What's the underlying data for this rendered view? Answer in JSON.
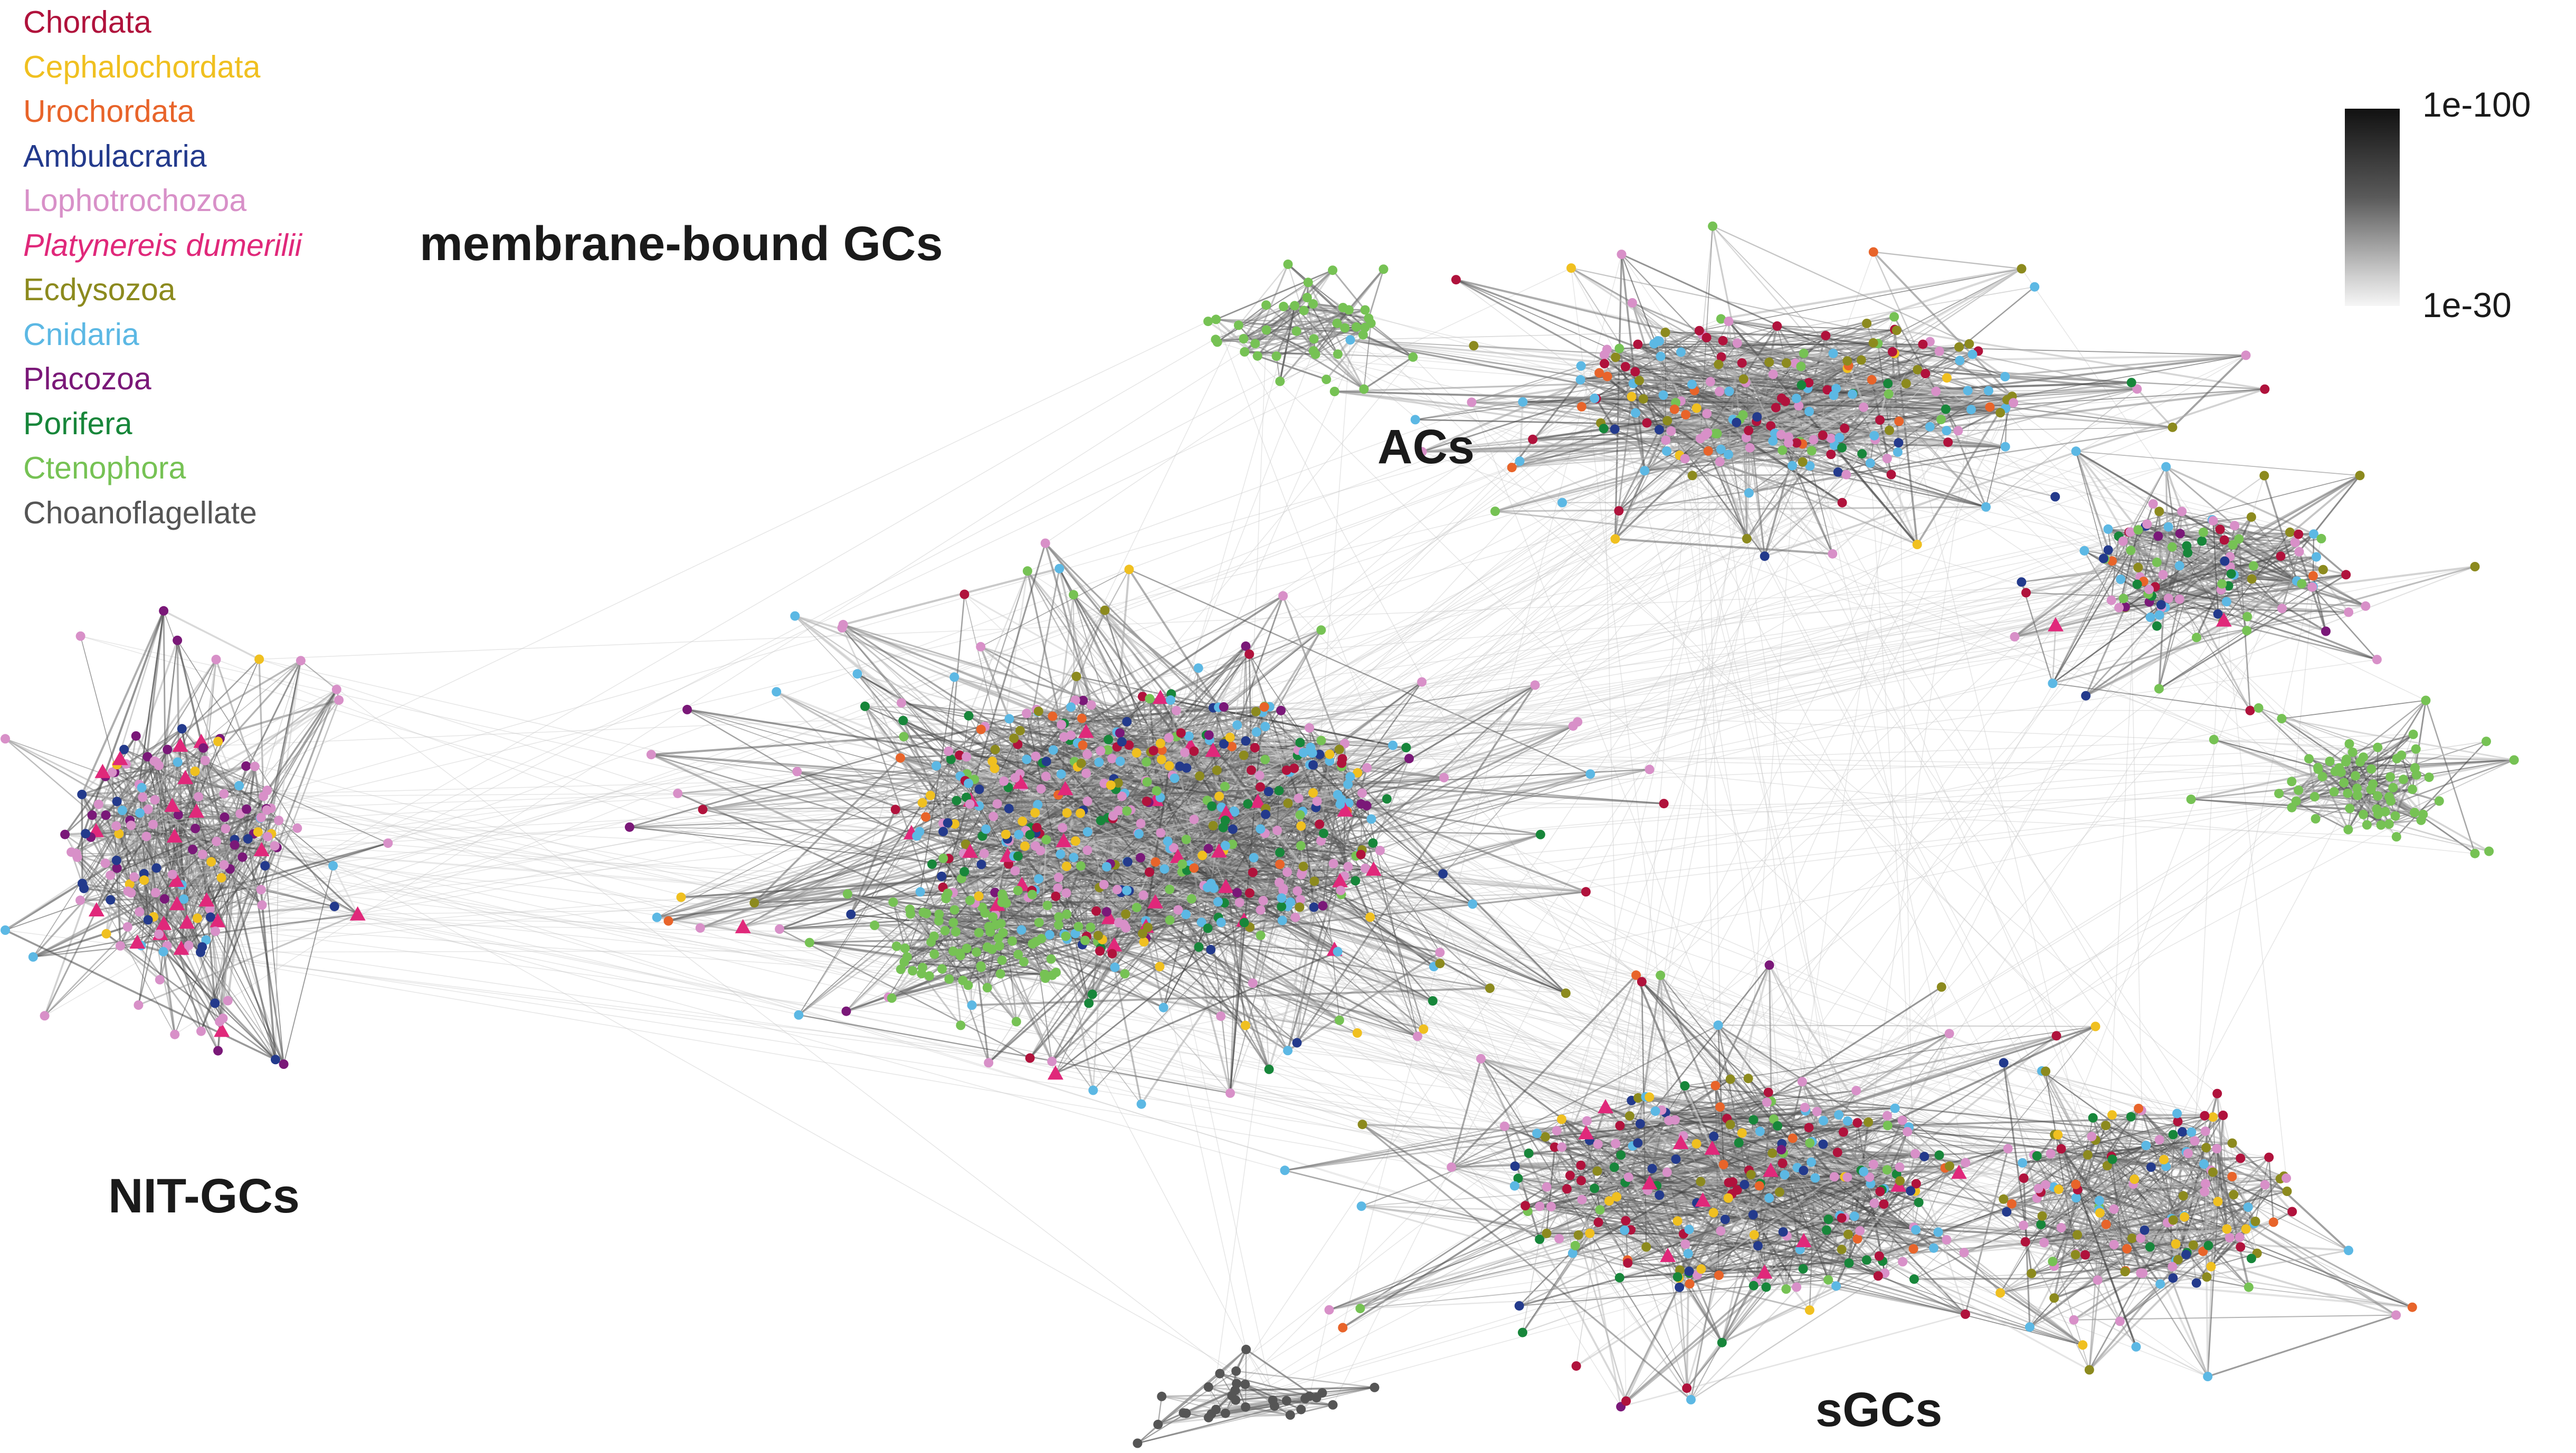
{
  "legend": {
    "items": [
      {
        "label": "Chordata",
        "color": "#b0123c"
      },
      {
        "label": "Cephalochordata",
        "color": "#f0c020"
      },
      {
        "label": "Urochordata",
        "color": "#e8642a"
      },
      {
        "label": "Ambulacraria",
        "color": "#233a8c"
      },
      {
        "label": "Lophotrochozoa",
        "color": "#d890c8"
      },
      {
        "label": "Platynereis dumerilii",
        "color": "#e0287a",
        "italic": true
      },
      {
        "label": "Ecdysozoa",
        "color": "#8c8a1e"
      },
      {
        "label": "Cnidaria",
        "color": "#5cb8e4"
      },
      {
        "label": "Placozoa",
        "color": "#7a1878"
      },
      {
        "label": "Porifera",
        "color": "#17863a"
      },
      {
        "label": "Ctenophora",
        "color": "#76c254"
      },
      {
        "label": "Choanoflagellate",
        "color": "#555555"
      }
    ]
  },
  "clusters": {
    "membrane_bound": {
      "label": "membrane-bound GCs"
    },
    "acs": {
      "label": "ACs"
    },
    "nit": {
      "label": "NIT-GCs"
    },
    "sgcs": {
      "label": "sGCs"
    }
  },
  "colorbar": {
    "max_label": "1e-100",
    "min_label": "1e-30",
    "max_color": "#111111",
    "min_color": "#f6f6f6"
  }
}
